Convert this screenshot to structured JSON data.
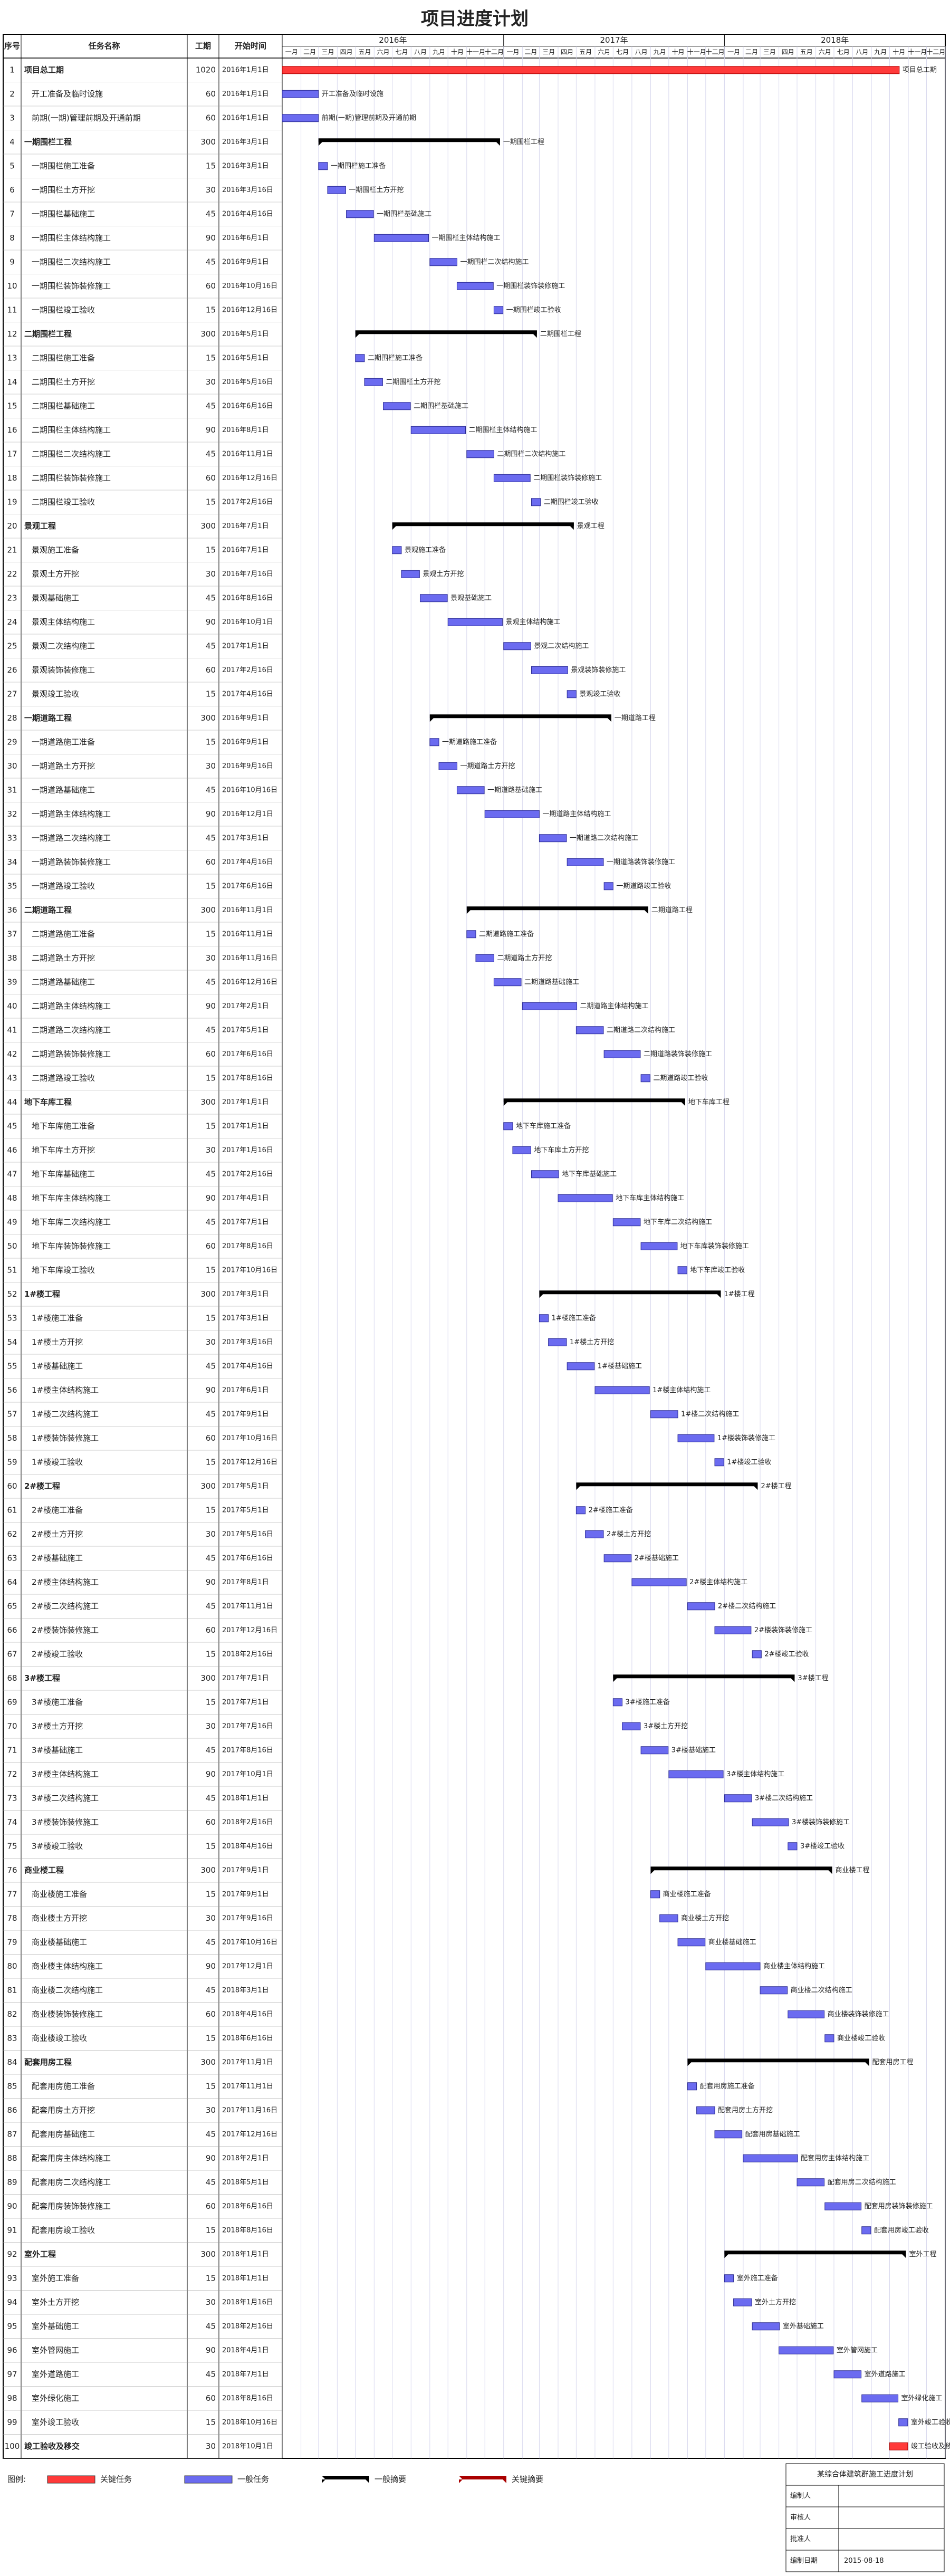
{
  "header": {
    "title": "项目进度计划"
  },
  "table": {
    "columns": [
      "序号",
      "任务名称",
      "工期",
      "开始时间"
    ],
    "rows": [
      [
        1,
        "项目总工期",
        1020,
        "2016年1月1日",
        2
      ],
      [
        2,
        "开工准备及临时设施",
        60,
        "2016年1月1日",
        1
      ],
      [
        3,
        "前期(一期)管理前期及开通前期",
        60,
        "2016年1月1日",
        1
      ],
      [
        4,
        "一期围栏工程",
        300,
        "2016年3月1日",
        0
      ],
      [
        5,
        "一期围栏施工准备",
        15,
        "2016年3月1日",
        1
      ],
      [
        6,
        "一期围栏土方开挖",
        30,
        "2016年3月16日",
        1
      ],
      [
        7,
        "一期围栏基础施工",
        45,
        "2016年4月16日",
        1
      ],
      [
        8,
        "一期围栏主体结构施工",
        90,
        "2016年6月1日",
        1
      ],
      [
        9,
        "一期围栏二次结构施工",
        45,
        "2016年9月1日",
        1
      ],
      [
        10,
        "一期围栏装饰装修施工",
        60,
        "2016年10月16日",
        1
      ],
      [
        11,
        "一期围栏竣工验收",
        15,
        "2016年12月16日",
        1
      ],
      [
        12,
        "二期围栏工程",
        300,
        "2016年5月1日",
        0
      ],
      [
        13,
        "二期围栏施工准备",
        15,
        "2016年5月1日",
        1
      ],
      [
        14,
        "二期围栏土方开挖",
        30,
        "2016年5月16日",
        1
      ],
      [
        15,
        "二期围栏基础施工",
        45,
        "2016年6月16日",
        1
      ],
      [
        16,
        "二期围栏主体结构施工",
        90,
        "2016年8月1日",
        1
      ],
      [
        17,
        "二期围栏二次结构施工",
        45,
        "2016年11月1日",
        1
      ],
      [
        18,
        "二期围栏装饰装修施工",
        60,
        "2016年12月16日",
        1
      ],
      [
        19,
        "二期围栏竣工验收",
        15,
        "2017年2月16日",
        1
      ],
      [
        20,
        "景观工程",
        300,
        "2016年7月1日",
        0
      ],
      [
        21,
        "景观施工准备",
        15,
        "2016年7月1日",
        1
      ],
      [
        22,
        "景观土方开挖",
        30,
        "2016年7月16日",
        1
      ],
      [
        23,
        "景观基础施工",
        45,
        "2016年8月16日",
        1
      ],
      [
        24,
        "景观主体结构施工",
        90,
        "2016年10月1日",
        1
      ],
      [
        25,
        "景观二次结构施工",
        45,
        "2017年1月1日",
        1
      ],
      [
        26,
        "景观装饰装修施工",
        60,
        "2017年2月16日",
        1
      ],
      [
        27,
        "景观竣工验收",
        15,
        "2017年4月16日",
        1
      ],
      [
        28,
        "一期道路工程",
        300,
        "2016年9月1日",
        0
      ],
      [
        29,
        "一期道路施工准备",
        15,
        "2016年9月1日",
        1
      ],
      [
        30,
        "一期道路土方开挖",
        30,
        "2016年9月16日",
        1
      ],
      [
        31,
        "一期道路基础施工",
        45,
        "2016年10月16日",
        1
      ],
      [
        32,
        "一期道路主体结构施工",
        90,
        "2016年12月1日",
        1
      ],
      [
        33,
        "一期道路二次结构施工",
        45,
        "2017年3月1日",
        1
      ],
      [
        34,
        "一期道路装饰装修施工",
        60,
        "2017年4月16日",
        1
      ],
      [
        35,
        "一期道路竣工验收",
        15,
        "2017年6月16日",
        1
      ],
      [
        36,
        "二期道路工程",
        300,
        "2016年11月1日",
        0
      ],
      [
        37,
        "二期道路施工准备",
        15,
        "2016年11月1日",
        1
      ],
      [
        38,
        "二期道路土方开挖",
        30,
        "2016年11月16日",
        1
      ],
      [
        39,
        "二期道路基础施工",
        45,
        "2016年12月16日",
        1
      ],
      [
        40,
        "二期道路主体结构施工",
        90,
        "2017年2月1日",
        1
      ],
      [
        41,
        "二期道路二次结构施工",
        45,
        "2017年5月1日",
        1
      ],
      [
        42,
        "二期道路装饰装修施工",
        60,
        "2017年6月16日",
        1
      ],
      [
        43,
        "二期道路竣工验收",
        15,
        "2017年8月16日",
        1
      ],
      [
        44,
        "地下车库工程",
        300,
        "2017年1月1日",
        0
      ],
      [
        45,
        "地下车库施工准备",
        15,
        "2017年1月1日",
        1
      ],
      [
        46,
        "地下车库土方开挖",
        30,
        "2017年1月16日",
        1
      ],
      [
        47,
        "地下车库基础施工",
        45,
        "2017年2月16日",
        1
      ],
      [
        48,
        "地下车库主体结构施工",
        90,
        "2017年4月1日",
        1
      ],
      [
        49,
        "地下车库二次结构施工",
        45,
        "2017年7月1日",
        1
      ],
      [
        50,
        "地下车库装饰装修施工",
        60,
        "2017年8月16日",
        1
      ],
      [
        51,
        "地下车库竣工验收",
        15,
        "2017年10月16日",
        1
      ],
      [
        52,
        "1#楼工程",
        300,
        "2017年3月1日",
        0
      ],
      [
        53,
        "1#楼施工准备",
        15,
        "2017年3月1日",
        1
      ],
      [
        54,
        "1#楼土方开挖",
        30,
        "2017年3月16日",
        1
      ],
      [
        55,
        "1#楼基础施工",
        45,
        "2017年4月16日",
        1
      ],
      [
        56,
        "1#楼主体结构施工",
        90,
        "2017年6月1日",
        1
      ],
      [
        57,
        "1#楼二次结构施工",
        45,
        "2017年9月1日",
        1
      ],
      [
        58,
        "1#楼装饰装修施工",
        60,
        "2017年10月16日",
        1
      ],
      [
        59,
        "1#楼竣工验收",
        15,
        "2017年12月16日",
        1
      ],
      [
        60,
        "2#楼工程",
        300,
        "2017年5月1日",
        0
      ],
      [
        61,
        "2#楼施工准备",
        15,
        "2017年5月1日",
        1
      ],
      [
        62,
        "2#楼土方开挖",
        30,
        "2017年5月16日",
        1
      ],
      [
        63,
        "2#楼基础施工",
        45,
        "2017年6月16日",
        1
      ],
      [
        64,
        "2#楼主体结构施工",
        90,
        "2017年8月1日",
        1
      ],
      [
        65,
        "2#楼二次结构施工",
        45,
        "2017年11月1日",
        1
      ],
      [
        66,
        "2#楼装饰装修施工",
        60,
        "2017年12月16日",
        1
      ],
      [
        67,
        "2#楼竣工验收",
        15,
        "2018年2月16日",
        1
      ],
      [
        68,
        "3#楼工程",
        300,
        "2017年7月1日",
        0
      ],
      [
        69,
        "3#楼施工准备",
        15,
        "2017年7月1日",
        1
      ],
      [
        70,
        "3#楼土方开挖",
        30,
        "2017年7月16日",
        1
      ],
      [
        71,
        "3#楼基础施工",
        45,
        "2017年8月16日",
        1
      ],
      [
        72,
        "3#楼主体结构施工",
        90,
        "2017年10月1日",
        1
      ],
      [
        73,
        "3#楼二次结构施工",
        45,
        "2018年1月1日",
        1
      ],
      [
        74,
        "3#楼装饰装修施工",
        60,
        "2018年2月16日",
        1
      ],
      [
        75,
        "3#楼竣工验收",
        15,
        "2018年4月16日",
        1
      ],
      [
        76,
        "商业楼工程",
        300,
        "2017年9月1日",
        0
      ],
      [
        77,
        "商业楼施工准备",
        15,
        "2017年9月1日",
        1
      ],
      [
        78,
        "商业楼土方开挖",
        30,
        "2017年9月16日",
        1
      ],
      [
        79,
        "商业楼基础施工",
        45,
        "2017年10月16日",
        1
      ],
      [
        80,
        "商业楼主体结构施工",
        90,
        "2017年12月1日",
        1
      ],
      [
        81,
        "商业楼二次结构施工",
        45,
        "2018年3月1日",
        1
      ],
      [
        82,
        "商业楼装饰装修施工",
        60,
        "2018年4月16日",
        1
      ],
      [
        83,
        "商业楼竣工验收",
        15,
        "2018年6月16日",
        1
      ],
      [
        84,
        "配套用房工程",
        300,
        "2017年11月1日",
        0
      ],
      [
        85,
        "配套用房施工准备",
        15,
        "2017年11月1日",
        1
      ],
      [
        86,
        "配套用房土方开挖",
        30,
        "2017年11月16日",
        1
      ],
      [
        87,
        "配套用房基础施工",
        45,
        "2017年12月16日",
        1
      ],
      [
        88,
        "配套用房主体结构施工",
        90,
        "2018年2月1日",
        1
      ],
      [
        89,
        "配套用房二次结构施工",
        45,
        "2018年5月1日",
        1
      ],
      [
        90,
        "配套用房装饰装修施工",
        60,
        "2018年6月16日",
        1
      ],
      [
        91,
        "配套用房竣工验收",
        15,
        "2018年8月16日",
        1
      ],
      [
        92,
        "室外工程",
        300,
        "2018年1月1日",
        0
      ],
      [
        93,
        "室外施工准备",
        15,
        "2018年1月1日",
        1
      ],
      [
        94,
        "室外土方开挖",
        30,
        "2018年1月16日",
        1
      ],
      [
        95,
        "室外基础施工",
        45,
        "2018年2月16日",
        1
      ],
      [
        96,
        "室外管网施工",
        90,
        "2018年4月1日",
        1
      ],
      [
        97,
        "室外道路施工",
        45,
        "2018年7月1日",
        1
      ],
      [
        98,
        "室外绿化施工",
        60,
        "2018年8月16日",
        1
      ],
      [
        99,
        "室外竣工验收",
        15,
        "2018年10月16日",
        1
      ],
      [
        100,
        "竣工验收及移交",
        30,
        "2018年10月1日",
        2
      ]
    ]
  },
  "timeline": {
    "start": "2016年1月1日",
    "years": [
      "2016年",
      "2017年",
      "2018年"
    ],
    "months": [
      "一月",
      "二月",
      "三月",
      "四月",
      "五月",
      "六月",
      "七月",
      "八月",
      "九月",
      "十月",
      "十一月",
      "十二月"
    ]
  },
  "legend": {
    "title": "图例:",
    "items": [
      "关键任务",
      "一般任务",
      "一般摘要",
      "关键摘要"
    ]
  },
  "info": {
    "title": "某综合体建筑群施工进度计划",
    "labels": [
      "编制人",
      "审核人",
      "批准人",
      "编制日期"
    ],
    "date": "2015-08-18"
  }
}
